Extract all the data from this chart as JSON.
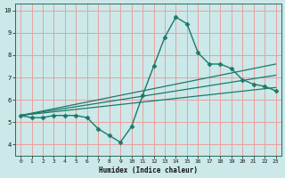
{
  "xlabel": "Humidex (Indice chaleur)",
  "ylabel": "",
  "bg_color": "#cce8e8",
  "grid_color": "#e8a0a0",
  "line_color": "#1a7a6a",
  "xlim": [
    -0.5,
    23.5
  ],
  "ylim": [
    3.5,
    10.3
  ],
  "xticks": [
    0,
    1,
    2,
    3,
    4,
    5,
    6,
    7,
    8,
    9,
    10,
    11,
    12,
    13,
    14,
    15,
    16,
    17,
    18,
    19,
    20,
    21,
    22,
    23
  ],
  "yticks": [
    4,
    5,
    6,
    7,
    8,
    9,
    10
  ],
  "series": [
    {
      "x": [
        0,
        1,
        2,
        3,
        4,
        5,
        6,
        7,
        8,
        9,
        10,
        11,
        12,
        13,
        14,
        15,
        16,
        17,
        18,
        19,
        20,
        21,
        22,
        23
      ],
      "y": [
        5.3,
        5.2,
        5.2,
        5.3,
        5.3,
        5.3,
        5.2,
        4.7,
        4.4,
        4.1,
        4.8,
        6.2,
        7.5,
        8.8,
        9.7,
        9.4,
        8.1,
        7.6,
        7.6,
        7.4,
        6.9,
        6.7,
        6.6,
        6.4
      ],
      "marker": "D",
      "markersize": 2.5,
      "linewidth": 1.0
    },
    {
      "x": [
        0,
        23
      ],
      "y": [
        5.3,
        7.6
      ],
      "marker": null,
      "linewidth": 0.9
    },
    {
      "x": [
        0,
        23
      ],
      "y": [
        5.3,
        6.55
      ],
      "marker": null,
      "linewidth": 0.9
    },
    {
      "x": [
        0,
        23
      ],
      "y": [
        5.3,
        7.1
      ],
      "marker": null,
      "linewidth": 0.9
    }
  ]
}
